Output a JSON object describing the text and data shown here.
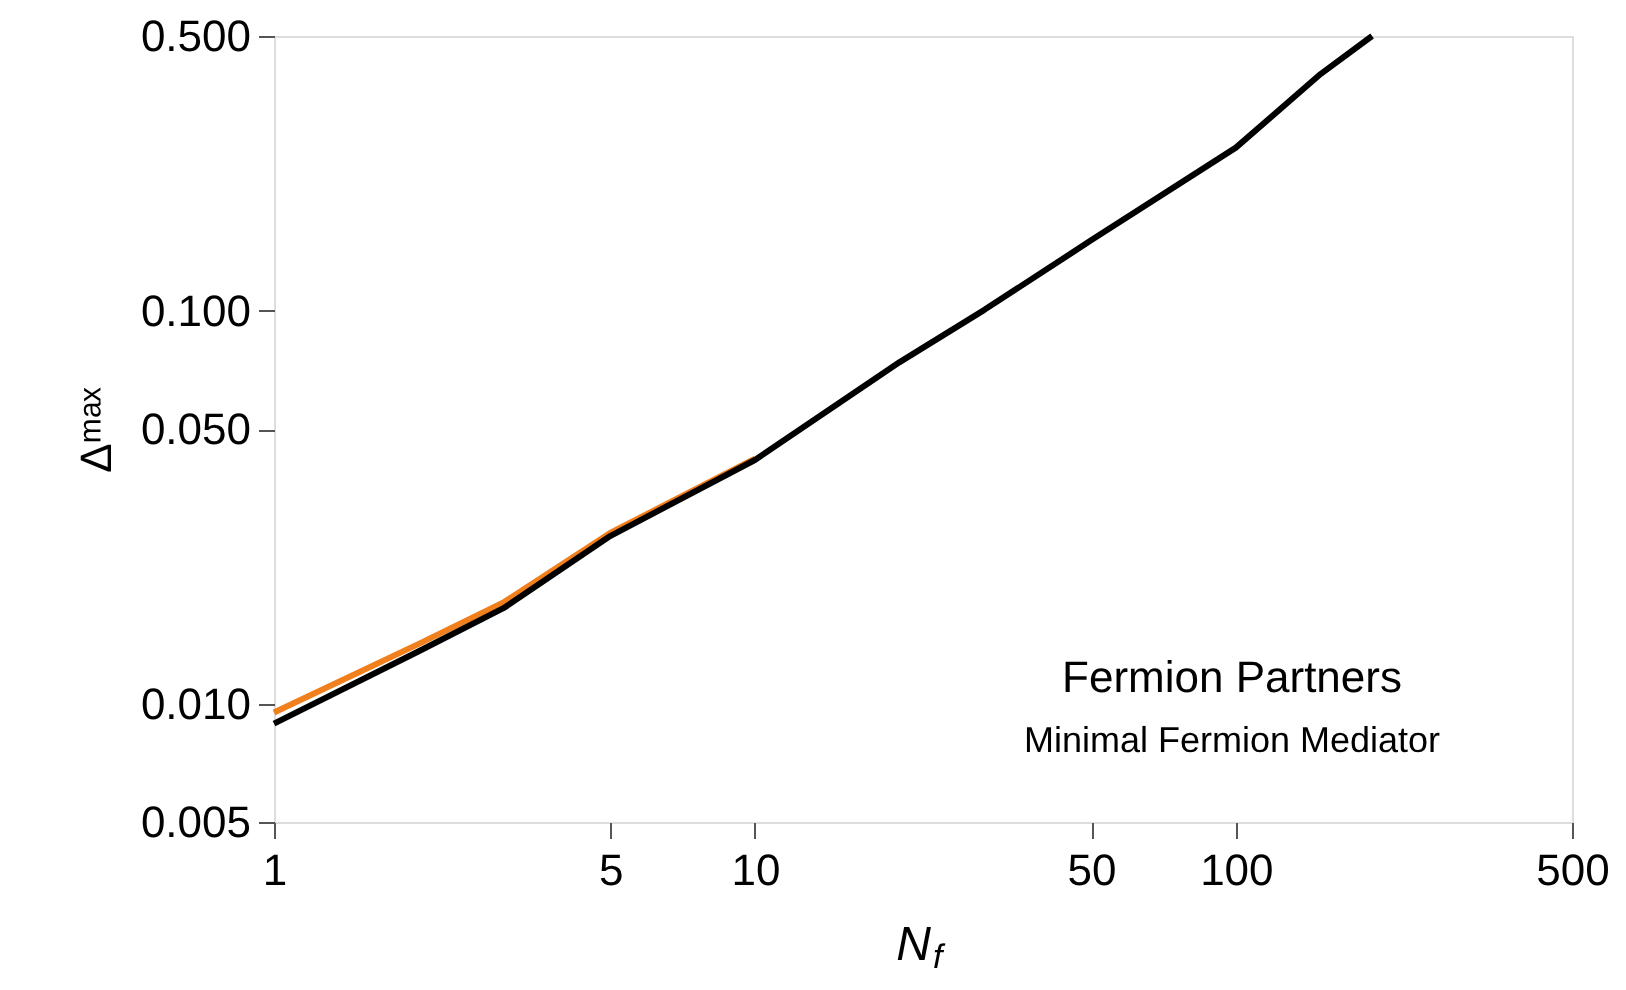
{
  "chart_data": {
    "type": "line",
    "xlabel": "N$_{f}$",
    "ylabel": "Δᵐᵃˣ",
    "log": "xy",
    "grid": false,
    "xlim": [
      1,
      500
    ],
    "xticks": [
      1,
      5,
      10,
      50,
      100,
      500
    ],
    "ylim": [
      0.005,
      0.5
    ],
    "yticks": [
      0.005,
      {
        "value": 0.01,
        "label": "0.010"
      },
      {
        "value": 0.05,
        "label": "0.050"
      },
      {
        "value": 0.1,
        "label": "0.100"
      },
      {
        "value": 0.5,
        "label": "0.500"
      }
    ],
    "series": [
      {
        "color": "#f07f1c",
        "x": [
          1,
          2,
          3,
          5,
          10
        ],
        "values": [
          0.0095,
          0.0142,
          0.0181,
          0.0272,
          0.042
        ]
      },
      {
        "color": "#000000",
        "x": [
          1,
          2,
          3,
          5,
          10,
          20,
          30,
          50,
          100,
          150,
          192
        ],
        "values": [
          0.0089,
          0.0136,
          0.0175,
          0.0267,
          0.0417,
          0.074,
          0.1005,
          0.151,
          0.26,
          0.4,
          0.5
        ]
      }
    ],
    "annotations": [
      "Fermion Partners",
      "Minimal Fermion Mediator"
    ]
  }
}
